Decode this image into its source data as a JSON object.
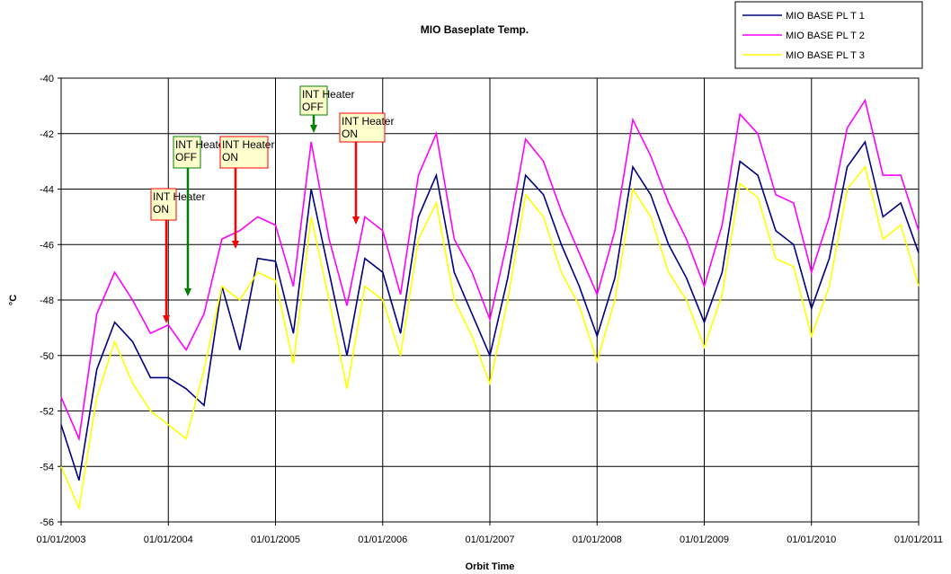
{
  "chart_data": {
    "type": "line",
    "title": "MIO Baseplate Temp.",
    "x_label": "Orbit Time",
    "y_label": "°C",
    "x": [
      "2003-01-01",
      "2003-03-01",
      "2003-05-01",
      "2003-07-01",
      "2003-09-01",
      "2003-11-01",
      "2004-01-01",
      "2004-03-01",
      "2004-05-01",
      "2004-07-01",
      "2004-09-01",
      "2004-11-01",
      "2005-01-01",
      "2005-03-01",
      "2005-05-01",
      "2005-07-01",
      "2005-09-01",
      "2005-11-01",
      "2006-01-01",
      "2006-03-01",
      "2006-05-01",
      "2006-07-01",
      "2006-09-01",
      "2006-11-01",
      "2007-01-01",
      "2007-03-01",
      "2007-05-01",
      "2007-07-01",
      "2007-09-01",
      "2007-11-01",
      "2008-01-01",
      "2008-03-01",
      "2008-05-01",
      "2008-07-01",
      "2008-09-01",
      "2008-11-01",
      "2009-01-01",
      "2009-03-01",
      "2009-05-01",
      "2009-07-01",
      "2009-09-01",
      "2009-11-01",
      "2010-01-01",
      "2010-03-01",
      "2010-05-01",
      "2010-07-01",
      "2010-09-01",
      "2010-11-01",
      "2011-01-01"
    ],
    "series": [
      {
        "name": "MIO BASE PL T 1",
        "color": "#000080",
        "values": [
          -52.5,
          -54.5,
          -50.5,
          -48.8,
          -49.5,
          -50.8,
          -50.8,
          -51.2,
          -51.8,
          -47.5,
          -49.8,
          -46.5,
          -46.6,
          -49.2,
          -44.0,
          -47.0,
          -50.0,
          -46.5,
          -47.0,
          -49.2,
          -45.0,
          -43.5,
          -47.0,
          -48.5,
          -50.0,
          -47.2,
          -43.5,
          -44.2,
          -46.0,
          -47.5,
          -49.3,
          -47.2,
          -43.2,
          -44.2,
          -46.0,
          -47.2,
          -48.8,
          -47.0,
          -43.0,
          -43.5,
          -45.5,
          -46.0,
          -48.3,
          -46.5,
          -43.2,
          -42.3,
          -45.0,
          -44.5,
          -46.3
        ]
      },
      {
        "name": "MIO BASE PL T 2",
        "color": "#ff00ff",
        "values": [
          -51.5,
          -53.0,
          -48.5,
          -47.0,
          -48.0,
          -49.2,
          -48.9,
          -49.8,
          -48.5,
          -45.8,
          -45.5,
          -45.0,
          -45.3,
          -47.5,
          -42.3,
          -45.8,
          -48.2,
          -45.0,
          -45.5,
          -47.8,
          -43.5,
          -42.0,
          -45.8,
          -47.0,
          -48.7,
          -45.8,
          -42.2,
          -43.0,
          -44.8,
          -46.3,
          -47.8,
          -45.5,
          -41.5,
          -42.8,
          -44.5,
          -45.8,
          -47.5,
          -45.3,
          -41.3,
          -42.0,
          -44.2,
          -44.5,
          -47.0,
          -45.0,
          -41.8,
          -40.8,
          -43.5,
          -43.5,
          -45.5
        ]
      },
      {
        "name": "MIO BASE PL T 3",
        "color": "#ffff00",
        "values": [
          -54.0,
          -55.5,
          -51.5,
          -49.5,
          -51.0,
          -52.0,
          -52.5,
          -53.0,
          -50.5,
          -47.5,
          -48.0,
          -47.0,
          -47.3,
          -50.3,
          -45.0,
          -48.0,
          -51.2,
          -47.5,
          -48.0,
          -50.0,
          -45.8,
          -44.5,
          -48.0,
          -49.3,
          -51.0,
          -48.0,
          -44.2,
          -45.0,
          -47.0,
          -48.2,
          -50.2,
          -48.0,
          -44.0,
          -45.0,
          -47.0,
          -48.0,
          -49.7,
          -47.8,
          -43.8,
          -44.3,
          -46.5,
          -46.8,
          -49.3,
          -47.5,
          -44.0,
          -43.2,
          -45.8,
          -45.3,
          -47.5
        ]
      }
    ],
    "xlim": [
      "2003-01-01",
      "2011-01-01"
    ],
    "xticks": [
      {
        "value": "2003-01-01",
        "label": "01/01/2003"
      },
      {
        "value": "2004-01-01",
        "label": "01/01/2004"
      },
      {
        "value": "2005-01-01",
        "label": "01/01/2005"
      },
      {
        "value": "2006-01-01",
        "label": "01/01/2006"
      },
      {
        "value": "2007-01-01",
        "label": "01/01/2007"
      },
      {
        "value": "2008-01-01",
        "label": "01/01/2008"
      },
      {
        "value": "2009-01-01",
        "label": "01/01/2009"
      },
      {
        "value": "2010-01-01",
        "label": "01/01/2010"
      },
      {
        "value": "2011-01-01",
        "label": "01/01/2011"
      }
    ],
    "ylim": [
      -56,
      -40
    ],
    "yticks": [
      -56,
      -54,
      -52,
      -50,
      -48,
      -46,
      -44,
      -42,
      -40
    ],
    "grid": true,
    "legend": "top-right",
    "annotations": [
      {
        "lines": [
          "INT Heater",
          "ON"
        ],
        "color": "#ff0000"
      },
      {
        "lines": [
          "INT Heater",
          "OFF"
        ],
        "color": "#008000"
      },
      {
        "lines": [
          "INT Heater",
          "ON"
        ],
        "color": "#ff0000"
      },
      {
        "lines": [
          "INT Heater",
          "OFF"
        ],
        "color": "#008000"
      },
      {
        "lines": [
          "INT Heater",
          "ON"
        ],
        "color": "#ff0000"
      }
    ]
  }
}
